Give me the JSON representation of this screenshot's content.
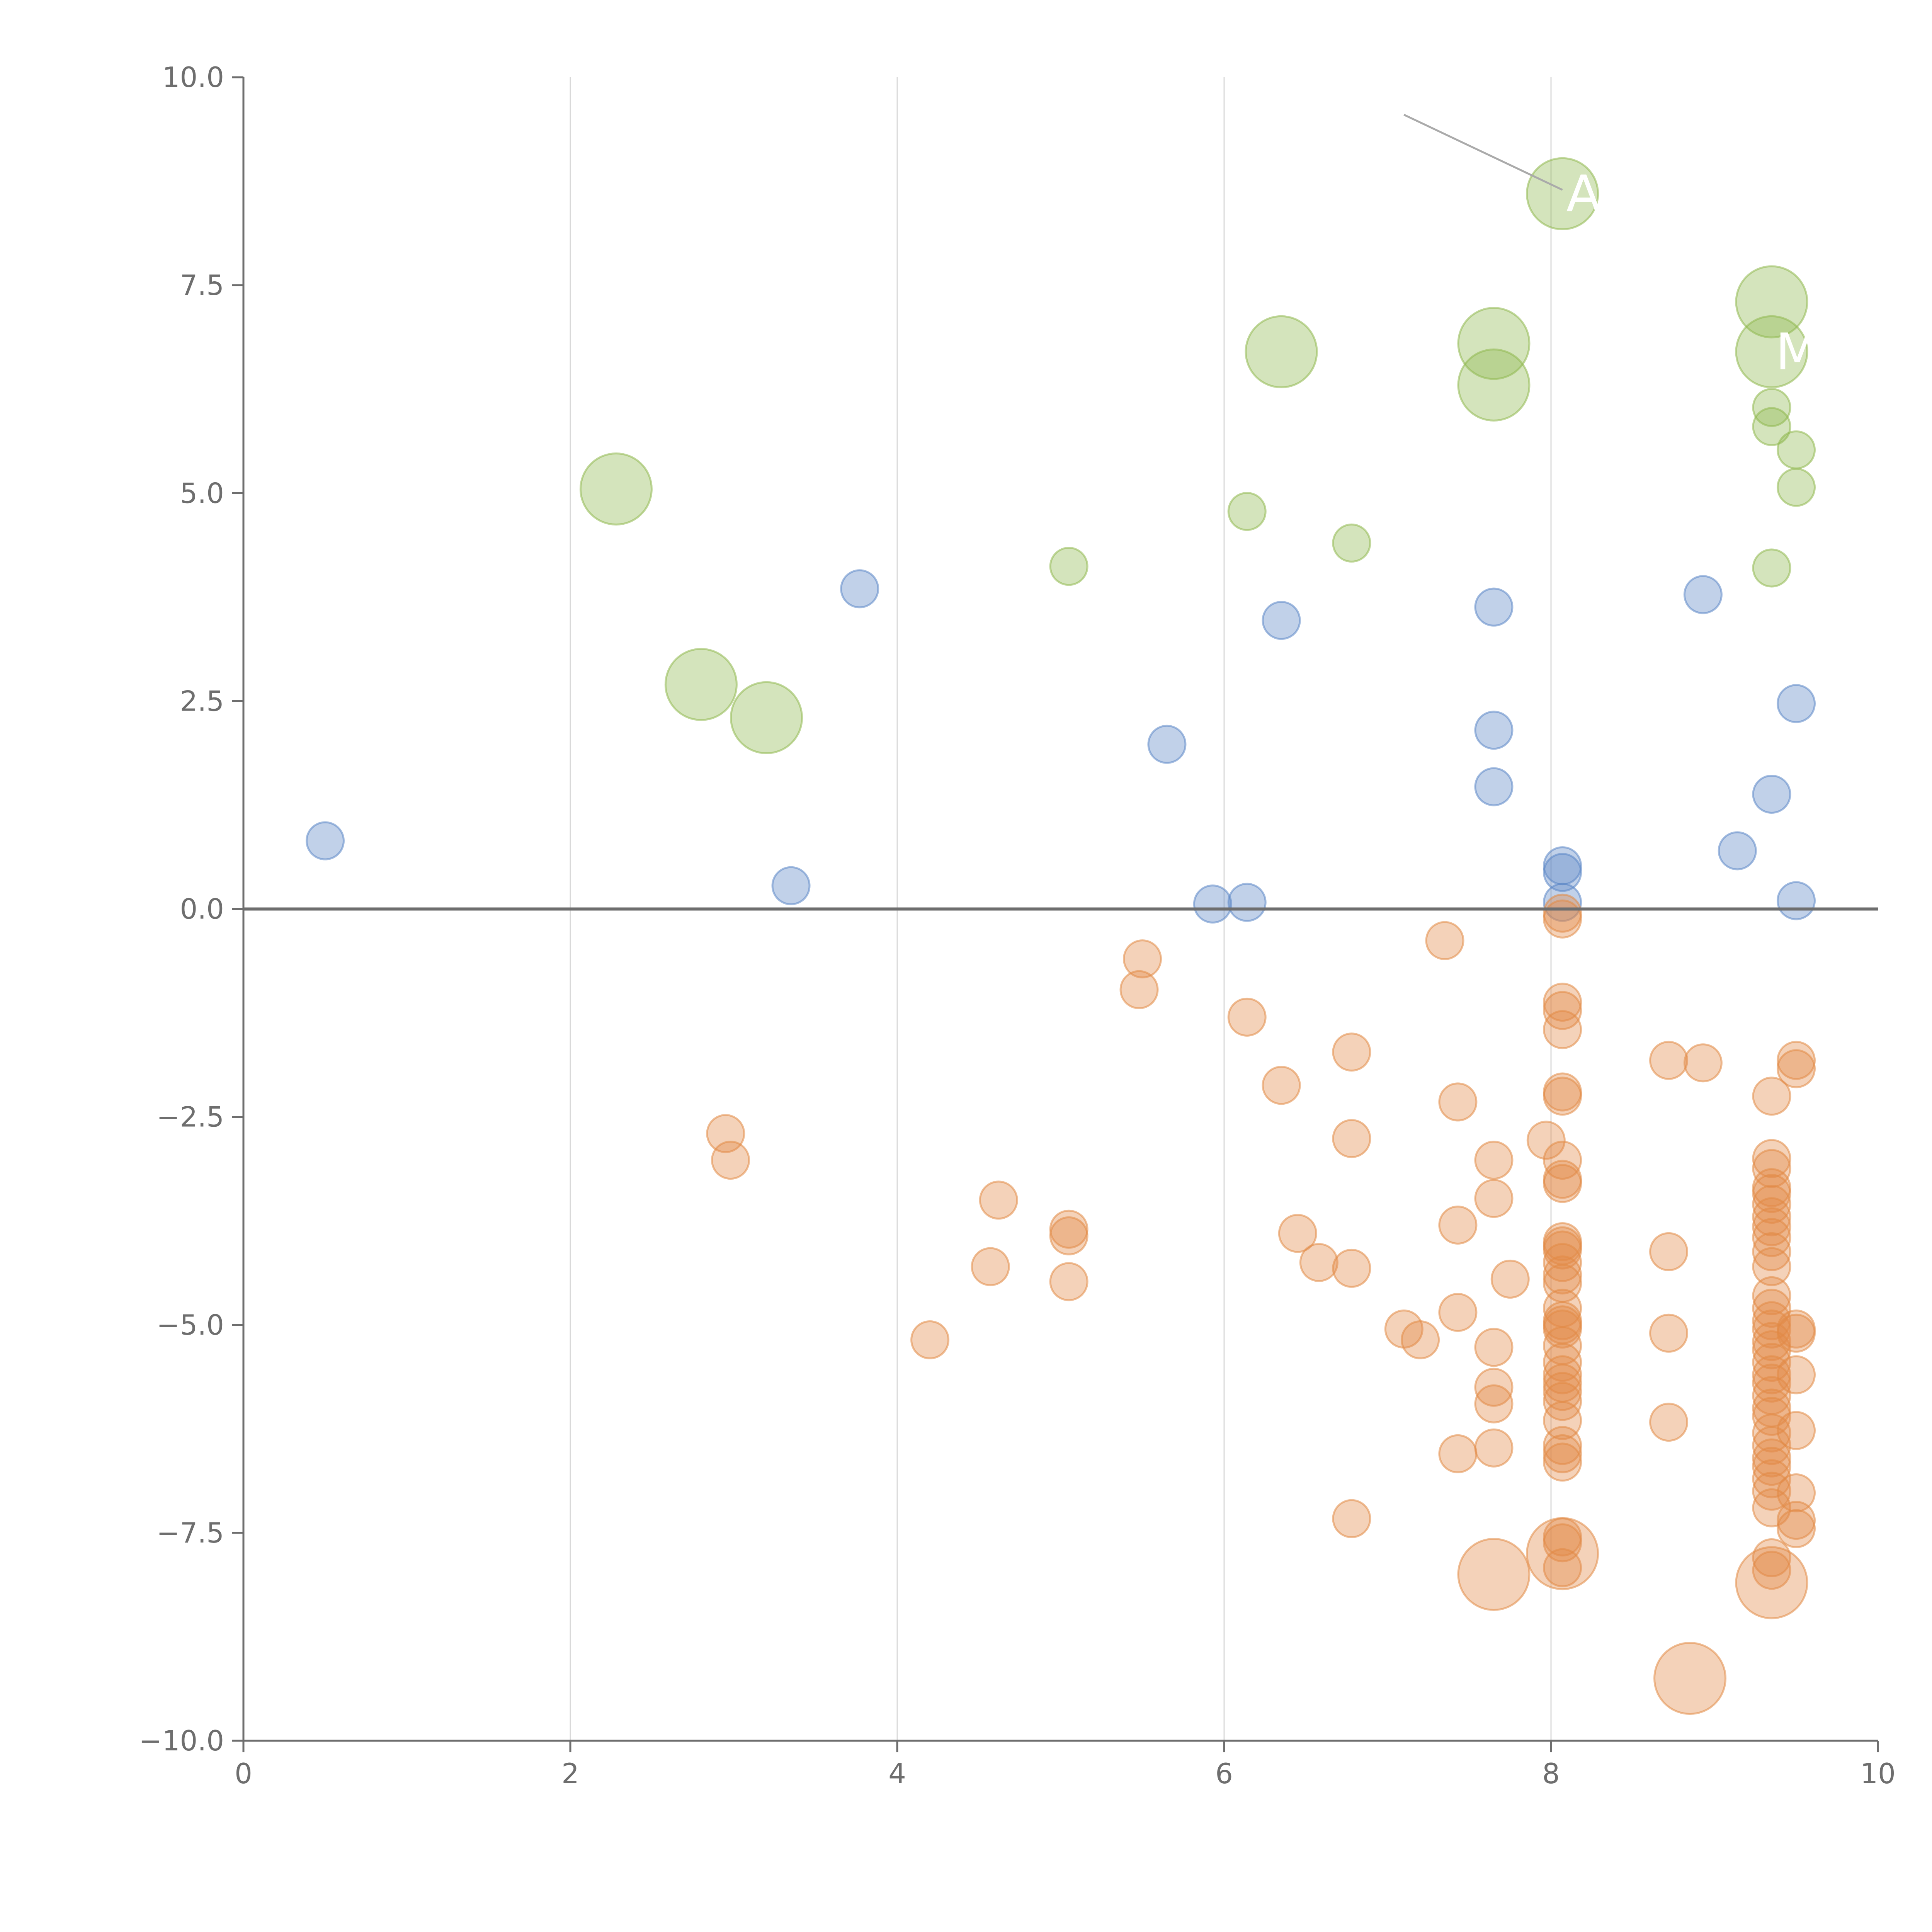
{
  "chart_data": {
    "type": "scatter",
    "title": "",
    "xlabel": "",
    "ylabel": "",
    "xlim": [
      0,
      10
    ],
    "ylim": [
      -10,
      10
    ],
    "x_ticks": [
      0,
      2,
      4,
      6,
      8,
      10
    ],
    "x_tick_labels": [
      "0",
      "2",
      "4",
      "6",
      "8",
      "10"
    ],
    "y_ticks": [
      -10,
      -7.5,
      -5,
      -2.5,
      0,
      2.5,
      5,
      7.5,
      10
    ],
    "y_tick_labels": [
      "−10.0",
      "−7.5",
      "−5.0",
      "−2.5",
      "0.0",
      "2.5",
      "5.0",
      "7.5",
      "10.0"
    ],
    "vertical_gridlines_at": [
      2,
      4,
      6,
      8
    ],
    "reference_line_y": 0,
    "colors": {
      "highlight": "#8fb84f",
      "positive": "#5b87c6",
      "negative": "#e28a46",
      "axis": "#6e6e6e",
      "grid": "#d9d9d9",
      "leader": "#aaaaaa",
      "label": "#ffffff"
    },
    "series": [
      {
        "name": "highlight-large",
        "color": "#8fb84f",
        "size": "large",
        "points": [
          [
            2.28,
            5.05
          ],
          [
            2.8,
            2.7
          ],
          [
            3.2,
            2.3
          ],
          [
            6.35,
            6.7
          ],
          [
            7.65,
            6.8
          ],
          [
            7.65,
            6.3
          ],
          [
            8.07,
            8.6
          ],
          [
            9.35,
            7.3
          ],
          [
            9.35,
            6.7
          ]
        ]
      },
      {
        "name": "highlight-small",
        "color": "#8fb84f",
        "size": "small",
        "points": [
          [
            5.05,
            4.12
          ],
          [
            6.14,
            4.78
          ],
          [
            6.78,
            4.4
          ],
          [
            9.35,
            6.03
          ],
          [
            9.35,
            5.8
          ],
          [
            9.5,
            5.52
          ],
          [
            9.5,
            5.07
          ],
          [
            9.35,
            4.1
          ]
        ]
      },
      {
        "name": "positive",
        "color": "#5b87c6",
        "size": "small",
        "points": [
          [
            0.5,
            0.82
          ],
          [
            3.35,
            0.28
          ],
          [
            3.77,
            3.85
          ],
          [
            5.65,
            1.98
          ],
          [
            5.93,
            0.06
          ],
          [
            6.14,
            0.08
          ],
          [
            6.35,
            3.47
          ],
          [
            7.65,
            3.63
          ],
          [
            7.65,
            2.15
          ],
          [
            7.65,
            1.47
          ],
          [
            8.07,
            0.52
          ],
          [
            8.07,
            0.44
          ],
          [
            8.07,
            0.08
          ],
          [
            8.93,
            3.78
          ],
          [
            9.14,
            0.7
          ],
          [
            9.35,
            1.38
          ],
          [
            9.5,
            2.47
          ],
          [
            9.5,
            0.1
          ]
        ]
      },
      {
        "name": "negative",
        "color": "#e28a46",
        "size": "small",
        "points": [
          [
            2.95,
            -2.7
          ],
          [
            2.98,
            -3.02
          ],
          [
            4.2,
            -5.18
          ],
          [
            4.57,
            -4.3
          ],
          [
            4.62,
            -3.5
          ],
          [
            5.05,
            -3.85
          ],
          [
            5.05,
            -3.93
          ],
          [
            5.05,
            -4.48
          ],
          [
            5.5,
            -0.6
          ],
          [
            5.48,
            -0.97
          ],
          [
            6.14,
            -1.3
          ],
          [
            6.35,
            -2.12
          ],
          [
            6.45,
            -3.9
          ],
          [
            6.58,
            -4.25
          ],
          [
            6.78,
            -1.72
          ],
          [
            6.78,
            -2.76
          ],
          [
            6.78,
            -4.32
          ],
          [
            6.78,
            -7.33
          ],
          [
            7.1,
            -5.05
          ],
          [
            7.2,
            -5.18
          ],
          [
            7.35,
            -0.38
          ],
          [
            7.43,
            -2.32
          ],
          [
            7.43,
            -3.8
          ],
          [
            7.43,
            -4.85
          ],
          [
            7.43,
            -6.55
          ],
          [
            7.65,
            -3.02
          ],
          [
            7.65,
            -3.48
          ],
          [
            7.65,
            -5.27
          ],
          [
            7.65,
            -5.75
          ],
          [
            7.65,
            -5.95
          ],
          [
            7.65,
            -6.48
          ],
          [
            7.75,
            -4.45
          ],
          [
            7.97,
            -2.78
          ],
          [
            8.07,
            -0.05
          ],
          [
            8.07,
            -0.12
          ],
          [
            8.07,
            -1.12
          ],
          [
            8.07,
            -1.22
          ],
          [
            8.07,
            -1.45
          ],
          [
            8.07,
            -2.2
          ],
          [
            8.07,
            -2.25
          ],
          [
            8.07,
            -3.02
          ],
          [
            8.07,
            -3.25
          ],
          [
            8.07,
            -3.3
          ],
          [
            8.07,
            -4.0
          ],
          [
            8.07,
            -4.05
          ],
          [
            8.07,
            -4.1
          ],
          [
            8.07,
            -4.25
          ],
          [
            8.07,
            -4.4
          ],
          [
            8.07,
            -4.5
          ],
          [
            8.07,
            -4.8
          ],
          [
            8.07,
            -4.95
          ],
          [
            8.07,
            -5.0
          ],
          [
            8.07,
            -5.05
          ],
          [
            8.07,
            -5.25
          ],
          [
            8.07,
            -5.45
          ],
          [
            8.07,
            -5.6
          ],
          [
            8.07,
            -5.7
          ],
          [
            8.07,
            -5.8
          ],
          [
            8.07,
            -5.92
          ],
          [
            8.07,
            -6.15
          ],
          [
            8.07,
            -6.45
          ],
          [
            8.07,
            -6.55
          ],
          [
            8.07,
            -6.65
          ],
          [
            8.07,
            -7.55
          ],
          [
            8.07,
            -7.62
          ],
          [
            8.07,
            -7.92
          ],
          [
            8.72,
            -1.82
          ],
          [
            8.72,
            -4.12
          ],
          [
            8.72,
            -5.1
          ],
          [
            8.72,
            -6.17
          ],
          [
            8.93,
            -1.85
          ],
          [
            9.35,
            -2.25
          ],
          [
            9.35,
            -3.0
          ],
          [
            9.35,
            -3.12
          ],
          [
            9.35,
            -3.35
          ],
          [
            9.35,
            -3.42
          ],
          [
            9.35,
            -3.55
          ],
          [
            9.35,
            -3.7
          ],
          [
            9.35,
            -3.82
          ],
          [
            9.35,
            -3.95
          ],
          [
            9.35,
            -4.12
          ],
          [
            9.35,
            -4.3
          ],
          [
            9.35,
            -4.65
          ],
          [
            9.35,
            -4.8
          ],
          [
            9.35,
            -4.95
          ],
          [
            9.35,
            -5.05
          ],
          [
            9.35,
            -5.2
          ],
          [
            9.35,
            -5.3
          ],
          [
            9.35,
            -5.45
          ],
          [
            9.35,
            -5.6
          ],
          [
            9.35,
            -5.7
          ],
          [
            9.35,
            -5.85
          ],
          [
            9.35,
            -6.0
          ],
          [
            9.35,
            -6.1
          ],
          [
            9.35,
            -6.3
          ],
          [
            9.35,
            -6.45
          ],
          [
            9.35,
            -6.6
          ],
          [
            9.35,
            -6.7
          ],
          [
            9.35,
            -6.85
          ],
          [
            9.35,
            -7.0
          ],
          [
            9.35,
            -7.2
          ],
          [
            9.35,
            -7.8
          ],
          [
            9.35,
            -7.95
          ],
          [
            9.5,
            -1.82
          ],
          [
            9.5,
            -1.92
          ],
          [
            9.5,
            -5.05
          ],
          [
            9.5,
            -5.1
          ],
          [
            9.5,
            -5.6
          ],
          [
            9.5,
            -6.27
          ],
          [
            9.5,
            -7.02
          ],
          [
            9.5,
            -7.35
          ],
          [
            9.5,
            -7.45
          ]
        ]
      },
      {
        "name": "negative-large",
        "color": "#e28a46",
        "size": "large",
        "points": [
          [
            7.65,
            -8.0
          ],
          [
            8.07,
            -7.75
          ],
          [
            8.85,
            -9.25
          ],
          [
            9.35,
            -8.1
          ]
        ]
      }
    ],
    "annotations": [
      {
        "text": "A",
        "x": 8.07,
        "y": 8.6
      },
      {
        "text": "MIN",
        "x": 9.35,
        "y": 6.7
      }
    ]
  }
}
